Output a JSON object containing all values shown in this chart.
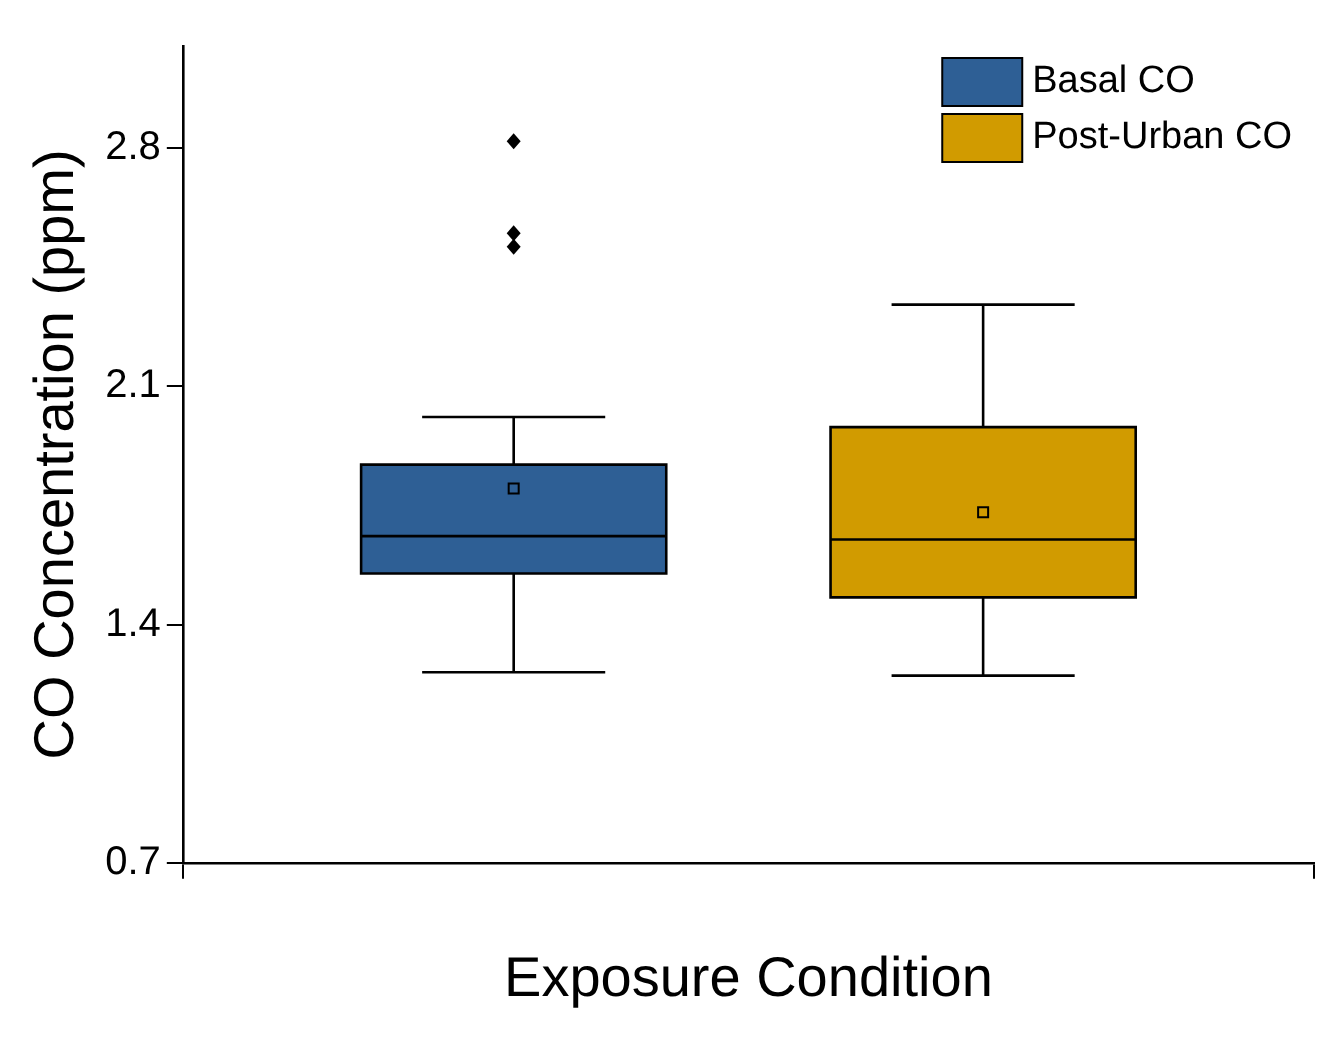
{
  "chart_data": {
    "type": "box",
    "xlabel": "Exposure Condition",
    "ylabel": "CO Concentration (ppm)",
    "categories": [
      null
    ],
    "ylim": [
      0.7,
      3.1
    ],
    "yticks": [
      0.7,
      1.4,
      2.1,
      2.8
    ],
    "grid": false,
    "legend": "top right",
    "series": [
      {
        "name": "Basal CO",
        "color": "#2e5f95",
        "boxes": [
          {
            "low": 1.26,
            "q1": 1.55,
            "median": 1.66,
            "q3": 1.87,
            "high": 2.01,
            "mean": 1.8,
            "outliers": [
              2.51,
              2.55,
              2.82
            ]
          }
        ]
      },
      {
        "name": "Post-Urban CO",
        "color": "#d19b00",
        "boxes": [
          {
            "low": 1.25,
            "q1": 1.48,
            "median": 1.65,
            "q3": 1.98,
            "high": 2.34,
            "mean": 1.73
          }
        ]
      }
    ]
  }
}
